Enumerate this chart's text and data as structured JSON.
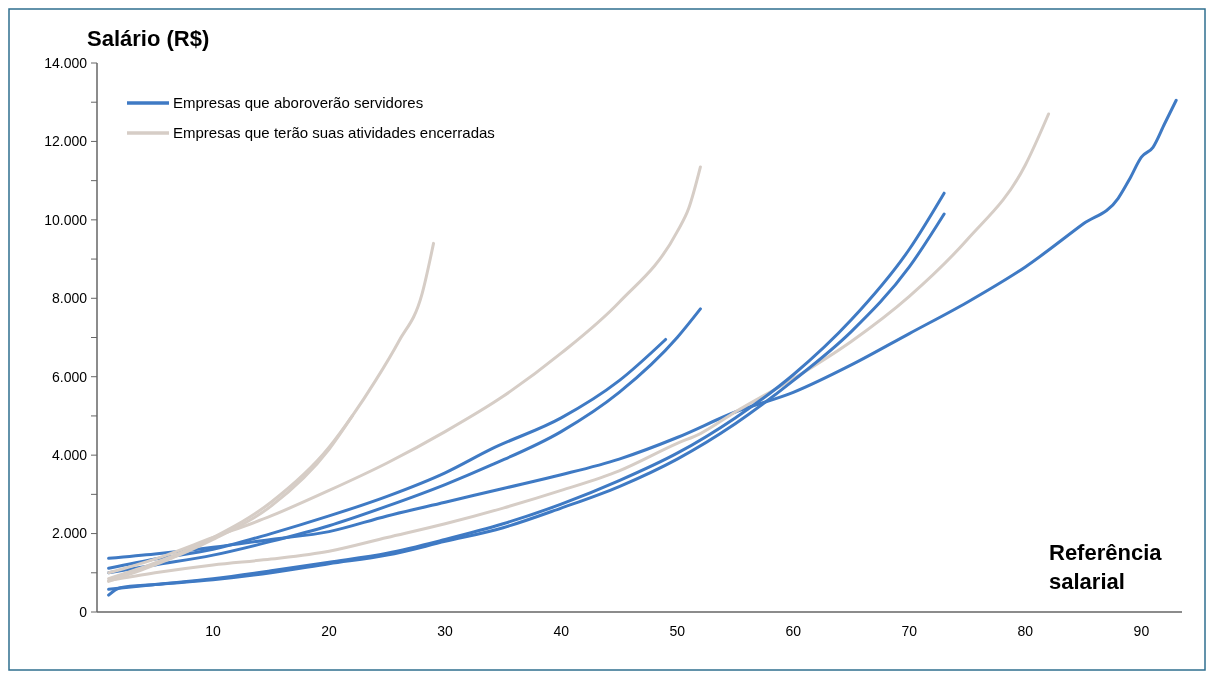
{
  "chart_data": {
    "type": "line",
    "ylabel": "Salário (R$)",
    "xlabel": "Referência salarial",
    "xlim": [
      0,
      93.5
    ],
    "xticks": [
      10,
      20,
      30,
      40,
      50,
      60,
      70,
      80,
      90
    ],
    "ylim": [
      0,
      14000
    ],
    "yticks": [
      {
        "value": 0,
        "label": "0"
      },
      {
        "value": 1000,
        "label": null
      },
      {
        "value": 2000,
        "label": "2.000"
      },
      {
        "value": 3000,
        "label": null
      },
      {
        "value": 4000,
        "label": "4.000"
      },
      {
        "value": 5000,
        "label": null
      },
      {
        "value": 6000,
        "label": "6.000"
      },
      {
        "value": 7000,
        "label": null
      },
      {
        "value": 8000,
        "label": "8.000"
      },
      {
        "value": 9000,
        "label": null
      },
      {
        "value": 10000,
        "label": "10.000"
      },
      {
        "value": 11000,
        "label": null
      },
      {
        "value": 12000,
        "label": "12.000"
      },
      {
        "value": 13000,
        "label": null
      },
      {
        "value": 14000,
        "label": "14.000"
      }
    ],
    "grid": false,
    "legend": "top left",
    "line_style": "solid",
    "marker": "none",
    "series": [
      {
        "name": "Empresas que aboroverão servidores",
        "color": "#3f7ac4",
        "x": [
          1,
          5,
          10,
          15,
          20,
          25,
          30,
          35,
          40,
          45,
          50,
          55,
          60,
          65,
          70,
          75,
          80,
          85,
          88,
          89,
          90,
          91,
          92,
          93
        ],
        "values": [
          1370,
          1480,
          1650,
          1850,
          2050,
          2450,
          2800,
          3150,
          3500,
          3900,
          4450,
          5100,
          5600,
          6300,
          7100,
          7900,
          8800,
          9900,
          10550,
          11050,
          11600,
          11850,
          12450,
          13050
        ]
      },
      {
        "name": "Empresas que terão suas atividades encerradas",
        "color": "#d6cdc6",
        "x": [
          1,
          5,
          10,
          15,
          20,
          25,
          30,
          35,
          40,
          45,
          50,
          52,
          55,
          60,
          65,
          70,
          75,
          80,
          82
        ],
        "values": [
          800,
          1000,
          1200,
          1350,
          1550,
          1900,
          2250,
          2650,
          3100,
          3600,
          4300,
          4550,
          5100,
          5950,
          6900,
          8050,
          9500,
          11400,
          12700
        ]
      },
      {
        "color": "#3f7ac4",
        "x": [
          1,
          5,
          10,
          15,
          20,
          25,
          30,
          34,
          40,
          45,
          49
        ],
        "values": [
          1115,
          1350,
          1600,
          2000,
          2450,
          2950,
          3550,
          4160,
          4950,
          5900,
          6950
        ]
      },
      {
        "color": "#3f7ac4",
        "x": [
          1,
          5,
          10,
          15,
          20,
          25,
          30,
          34,
          40,
          45,
          50,
          52
        ],
        "values": [
          1000,
          1200,
          1450,
          1800,
          2200,
          2700,
          3250,
          3750,
          4600,
          5600,
          7000,
          7730
        ]
      },
      {
        "color": "#3f7ac4",
        "x": [
          1,
          5,
          10,
          15,
          20,
          25,
          30,
          35,
          40,
          45,
          50,
          55,
          60,
          65,
          70,
          73
        ],
        "values": [
          580,
          700,
          850,
          1050,
          1270,
          1500,
          1850,
          2250,
          2750,
          3350,
          4050,
          4950,
          6050,
          7450,
          9250,
          10680
        ]
      },
      {
        "color": "#3f7ac4",
        "x": [
          1,
          2,
          5,
          10,
          15,
          20,
          25,
          30,
          35,
          40,
          45,
          50,
          55,
          60,
          65,
          70,
          73
        ],
        "values": [
          430,
          620,
          700,
          820,
          1000,
          1230,
          1450,
          1800,
          2150,
          2650,
          3200,
          3900,
          4800,
          5900,
          7150,
          8800,
          10150
        ]
      },
      {
        "color": "#d6cdc6",
        "x": [
          1,
          5,
          10,
          15,
          20,
          25,
          30,
          35,
          40,
          45,
          50,
          51,
          52
        ],
        "values": [
          1000,
          1350,
          1900,
          2450,
          3100,
          3800,
          4600,
          5500,
          6600,
          7900,
          9700,
          10300,
          11350
        ]
      },
      {
        "color": "#d6cdc6",
        "x": [
          1,
          5,
          10,
          15,
          20,
          22,
          24,
          26,
          28,
          29
        ],
        "values": [
          850,
          1250,
          1900,
          2800,
          4200,
          5000,
          5900,
          6900,
          8100,
          9400
        ]
      },
      {
        "color": "#d6cdc6",
        "x": [
          1,
          5,
          10,
          15,
          20,
          22
        ],
        "values": [
          780,
          1200,
          1850,
          2700,
          4150,
          5000
        ]
      }
    ]
  }
}
